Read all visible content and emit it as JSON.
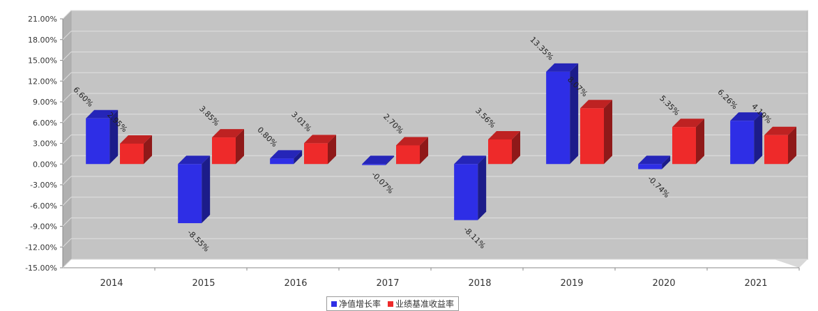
{
  "chart_data": {
    "type": "bar",
    "categories": [
      "2014",
      "2015",
      "2016",
      "2017",
      "2018",
      "2019",
      "2020",
      "2021"
    ],
    "series": [
      {
        "name": "净值增长率",
        "color": "#2e2ee6",
        "values": [
          6.6,
          -8.55,
          0.8,
          -0.07,
          -8.11,
          13.35,
          -0.74,
          6.26
        ],
        "labels": [
          "6.60%",
          "-8.55%",
          "0.80%",
          "-0.07%",
          "-8.11%",
          "13.35%",
          "-0.74%",
          "6.26%"
        ]
      },
      {
        "name": "业绩基准收益率",
        "color": "#ee2a2a",
        "values": [
          2.95,
          3.85,
          3.01,
          2.7,
          3.56,
          8.07,
          5.35,
          4.19
        ],
        "labels": [
          "2.95%",
          "3.85%",
          "3.01%",
          "2.70%",
          "3.56%",
          "8.07%",
          "5.35%",
          "4.19%"
        ]
      }
    ],
    "ylim": [
      -15,
      21
    ],
    "yticks": [
      "21.00%",
      "18.00%",
      "15.00%",
      "12.00%",
      "9.00%",
      "6.00%",
      "3.00%",
      "0.00%",
      "-3.00%",
      "-6.00%",
      "-9.00%",
      "-12.00%",
      "-15.00%"
    ],
    "ytick_values": [
      21,
      18,
      15,
      12,
      9,
      6,
      3,
      0,
      -3,
      -6,
      -9,
      -12,
      -15
    ],
    "grid": true,
    "legend_position": "bottom-center",
    "plot_background": "#c4c4c4"
  }
}
